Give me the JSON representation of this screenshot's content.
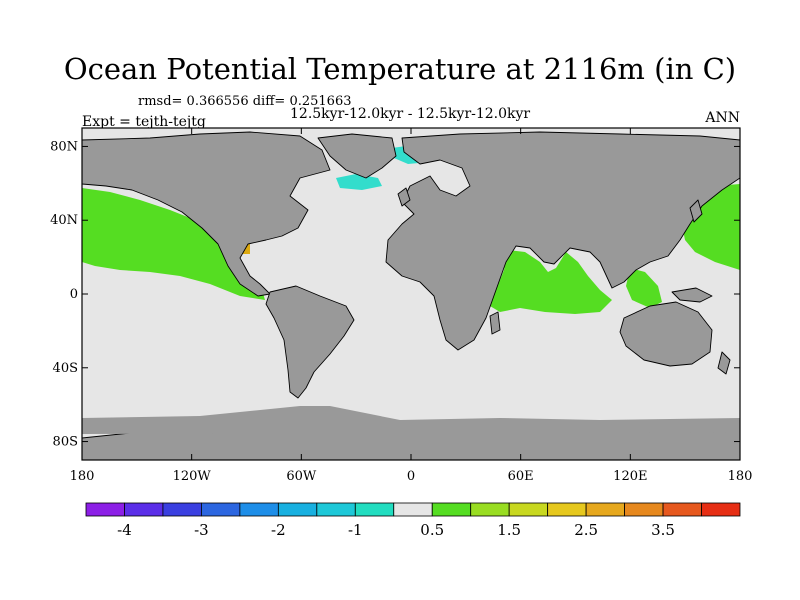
{
  "header": {
    "title": "Ocean Potential Temperature at 2116m (in C)",
    "stats": "rmsd= 0.366556 diff= 0.251663",
    "subtitle": "12.5kyr-12.0kyr - 12.5kyr-12.0kyr",
    "expt": "Expt = tejth-tejtg",
    "season": "ANN"
  },
  "map": {
    "lon_range": [
      -180,
      180
    ],
    "lat_range": [
      -90,
      90
    ],
    "x_ticks": [
      {
        "lon": -180,
        "label": "180"
      },
      {
        "lon": -120,
        "label": "120W"
      },
      {
        "lon": -60,
        "label": "60W"
      },
      {
        "lon": 0,
        "label": "0"
      },
      {
        "lon": 60,
        "label": "60E"
      },
      {
        "lon": 120,
        "label": "120E"
      },
      {
        "lon": 180,
        "label": "180"
      }
    ],
    "y_ticks": [
      {
        "lat": 80,
        "label": "80N"
      },
      {
        "lat": 40,
        "label": "40N"
      },
      {
        "lat": 0,
        "label": "0"
      },
      {
        "lat": -40,
        "label": "40S"
      },
      {
        "lat": -80,
        "label": "80S"
      }
    ],
    "colors": {
      "land": "#999999",
      "ocean_near_zero": "#e6e6e6",
      "slight_warm": "#55dd22",
      "slight_cool": "#33ddcc",
      "warm_spot": "#ddaa11"
    }
  },
  "colorbar": {
    "colors": [
      "#8c1fe6",
      "#5b2ee8",
      "#3a3fe0",
      "#2c66e0",
      "#1e8ee8",
      "#18b0e0",
      "#1ec8d8",
      "#22ddc0",
      "#e6e6e6",
      "#55dd22",
      "#99dd22",
      "#c8d820",
      "#e6c81e",
      "#e6a81e",
      "#e6881e",
      "#e6581e",
      "#e62e14"
    ],
    "labels": [
      {
        "index": 1,
        "text": "-4"
      },
      {
        "index": 3,
        "text": "-3"
      },
      {
        "index": 5,
        "text": "-2"
      },
      {
        "index": 7,
        "text": "-1"
      },
      {
        "index": 9,
        "text": "0.5"
      },
      {
        "index": 11,
        "text": "1.5"
      },
      {
        "index": 13,
        "text": "2.5"
      },
      {
        "index": 15,
        "text": "3.5"
      }
    ]
  }
}
